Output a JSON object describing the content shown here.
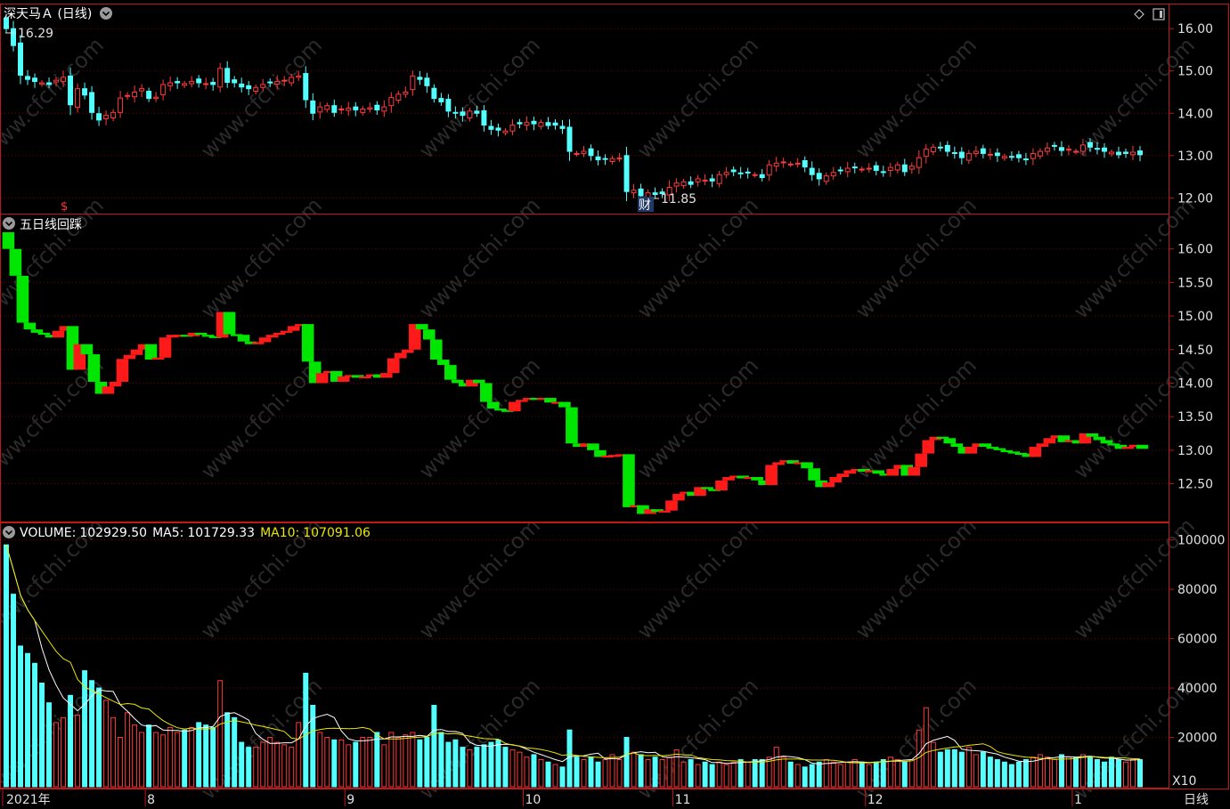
{
  "title": "深天马Ａ (日线)",
  "high_label": "16.29",
  "low_label": "11.85",
  "cai_marker": "财",
  "dollar_marker": "$",
  "panel2_title": "五日线回踩",
  "volume_header": {
    "volume_label": "VOLUME:",
    "volume_value": "102929.50",
    "ma5_label": "MA5:",
    "ma5_value": "101729.33",
    "ma10_label": "MA10:",
    "ma10_value": "107091.06"
  },
  "volume_multiplier": "X10",
  "period_button": "日线",
  "watermark": "www.cfchi.com",
  "colors": {
    "up": "#ff3b3b",
    "down": "#54ffff",
    "green": "#00e600",
    "grid": "#7a0000",
    "border": "#c01818",
    "ma5": "#ffffff",
    "ma10": "#e8e800"
  },
  "chart_data": {
    "type": "candlestick",
    "x_labels": [
      {
        "index": 0,
        "label": "2021年"
      },
      {
        "index": 20,
        "label": "8"
      },
      {
        "index": 48,
        "label": "9"
      },
      {
        "index": 73,
        "label": "10"
      },
      {
        "index": 94,
        "label": "11"
      },
      {
        "index": 121,
        "label": "12"
      },
      {
        "index": 150,
        "label": "1"
      }
    ],
    "price_ticks": [
      "16.00",
      "15.00",
      "14.00",
      "13.00",
      "12.00"
    ],
    "price_range": [
      11.65,
      16.55
    ],
    "indicator_ticks": [
      "16.00",
      "15.50",
      "15.00",
      "14.50",
      "14.00",
      "13.50",
      "13.00",
      "12.50"
    ],
    "indicator_range": [
      11.95,
      16.5
    ],
    "volume_ticks": [
      "100000",
      "80000",
      "60000",
      "40000",
      "20000"
    ],
    "volume_range": [
      0,
      106000
    ],
    "closes": [
      16.0,
      15.6,
      14.9,
      14.8,
      14.75,
      14.72,
      14.68,
      14.78,
      14.85,
      14.2,
      14.58,
      14.43,
      14.02,
      13.84,
      13.95,
      14.02,
      14.36,
      14.42,
      14.5,
      14.58,
      14.35,
      14.38,
      14.68,
      14.72,
      14.72,
      14.7,
      14.75,
      14.72,
      14.7,
      14.68,
      15.06,
      14.73,
      14.72,
      14.62,
      14.58,
      14.61,
      14.68,
      14.72,
      14.75,
      14.78,
      14.85,
      14.88,
      14.32,
      14.0,
      14.15,
      14.18,
      14.02,
      14.1,
      14.12,
      14.08,
      14.1,
      14.13,
      14.08,
      14.15,
      14.37,
      14.45,
      14.5,
      14.88,
      14.8,
      14.65,
      14.35,
      14.27,
      14.05,
      14.0,
      13.95,
      14.05,
      14.0,
      13.72,
      13.62,
      13.6,
      13.58,
      13.72,
      13.75,
      13.78,
      13.75,
      13.78,
      13.71,
      13.72,
      13.64,
      13.1,
      13.05,
      13.1,
      13.0,
      12.9,
      12.92,
      12.93,
      12.94,
      12.15,
      12.18,
      12.05,
      12.12,
      12.08,
      12.1,
      12.25,
      12.35,
      12.38,
      12.32,
      12.45,
      12.42,
      12.4,
      12.55,
      12.6,
      12.62,
      12.58,
      12.6,
      12.55,
      12.48,
      12.78,
      12.82,
      12.85,
      12.8,
      12.82,
      12.73,
      12.55,
      12.45,
      12.52,
      12.6,
      12.65,
      12.7,
      12.72,
      12.68,
      12.7,
      12.65,
      12.62,
      12.72,
      12.78,
      12.62,
      12.75,
      12.95,
      13.15,
      13.2,
      13.18,
      13.1,
      13.05,
      12.95,
      13.05,
      13.1,
      13.05,
      13.03,
      13.0,
      12.98,
      12.96,
      12.95,
      12.9,
      13.05,
      13.1,
      13.18,
      13.22,
      13.12,
      13.15,
      13.1,
      13.25,
      13.2,
      13.15,
      13.1,
      13.08,
      13.02,
      13.05,
      13.08,
      13.02
    ],
    "volumes": [
      98000,
      78000,
      57000,
      54000,
      50000,
      42000,
      34000,
      26000,
      28000,
      37000,
      29000,
      47000,
      43000,
      40000,
      35000,
      28000,
      20000,
      30000,
      25000,
      22000,
      25000,
      22000,
      21000,
      24000,
      22000,
      23000,
      24000,
      26000,
      25000,
      24000,
      43000,
      30000,
      28000,
      18000,
      16000,
      16000,
      18000,
      20000,
      18000,
      17000,
      16000,
      26000,
      46000,
      33000,
      22000,
      20000,
      19000,
      19000,
      17000,
      18000,
      20000,
      20000,
      22000,
      17000,
      22000,
      20000,
      21000,
      22000,
      19000,
      20000,
      33000,
      22000,
      18000,
      19000,
      16000,
      15000,
      16000,
      17000,
      18000,
      19000,
      16000,
      15000,
      14000,
      12000,
      13000,
      11000,
      10000,
      9000,
      8000,
      23000,
      12000,
      11000,
      12000,
      10000,
      11000,
      13000,
      11000,
      20000,
      14000,
      13000,
      11000,
      12000,
      11000,
      12000,
      15000,
      10000,
      11000,
      9000,
      10000,
      9000,
      10000,
      9000,
      10000,
      11000,
      10000,
      11000,
      11000,
      12000,
      16000,
      12000,
      10000,
      9000,
      8000,
      9000,
      10000,
      11000,
      10000,
      9000,
      10000,
      11000,
      10000,
      9000,
      10000,
      11000,
      12000,
      11000,
      10000,
      11000,
      23000,
      32000,
      18000,
      14000,
      15000,
      15000,
      14000,
      16000,
      13000,
      14000,
      12000,
      11000,
      10000,
      9000,
      10000,
      11000,
      12000,
      13000,
      12000,
      11000,
      13000,
      12000,
      12000,
      13000,
      12000,
      11000,
      10000,
      12000,
      11000,
      10000,
      11000,
      11000
    ]
  }
}
